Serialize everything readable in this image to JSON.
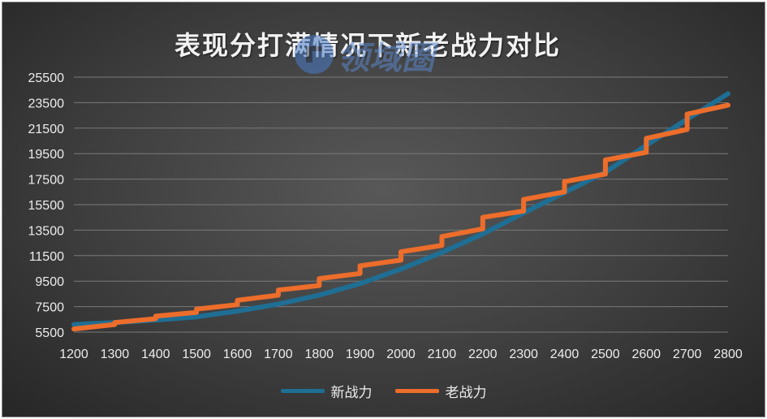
{
  "chart_data": {
    "type": "line",
    "title": "表现分打满情况下新老战力对比",
    "watermark": "领域圈",
    "xlabel": "",
    "ylabel": "",
    "x_ticks": [
      "1200",
      "1300",
      "1400",
      "1500",
      "1600",
      "1700",
      "1800",
      "1900",
      "2000",
      "2100",
      "2200",
      "2300",
      "2400",
      "2500",
      "2600",
      "2700",
      "2800"
    ],
    "y_ticks": [
      "25500",
      "23500",
      "21500",
      "19500",
      "17500",
      "15500",
      "13500",
      "11500",
      "9500",
      "7500",
      "5500"
    ],
    "xlim": [
      1200,
      2800
    ],
    "ylim": [
      5000,
      26000
    ],
    "grid": true,
    "legend_position": "bottom",
    "colors": {
      "new": "#1f6e94",
      "old": "#ed6d2b"
    },
    "series": [
      {
        "name": "新战力",
        "x": [
          1200,
          1300,
          1400,
          1500,
          1600,
          1700,
          1800,
          1900,
          2000,
          2100,
          2200,
          2300,
          2400,
          2500,
          2600,
          2700,
          2800
        ],
        "values": [
          6100,
          6250,
          6450,
          6700,
          7150,
          7700,
          8400,
          9300,
          10450,
          11750,
          13200,
          14850,
          16450,
          18050,
          20150,
          22200,
          24200
        ]
      },
      {
        "name": "老战力",
        "steps": [
          {
            "x0": 1200,
            "x1": 1300,
            "y0": 5750,
            "y1": 6100
          },
          {
            "x0": 1300,
            "x1": 1400,
            "y0": 6250,
            "y1": 6550
          },
          {
            "x0": 1400,
            "x1": 1500,
            "y0": 6750,
            "y1": 7050
          },
          {
            "x0": 1500,
            "x1": 1600,
            "y0": 7300,
            "y1": 7650
          },
          {
            "x0": 1600,
            "x1": 1700,
            "y0": 8000,
            "y1": 8400
          },
          {
            "x0": 1700,
            "x1": 1800,
            "y0": 8800,
            "y1": 9150
          },
          {
            "x0": 1800,
            "x1": 1900,
            "y0": 9700,
            "y1": 10100
          },
          {
            "x0": 1900,
            "x1": 2000,
            "y0": 10700,
            "y1": 11150
          },
          {
            "x0": 2000,
            "x1": 2100,
            "y0": 11800,
            "y1": 12300
          },
          {
            "x0": 2100,
            "x1": 2200,
            "y0": 13000,
            "y1": 13600
          },
          {
            "x0": 2200,
            "x1": 2300,
            "y0": 14500,
            "y1": 15000
          },
          {
            "x0": 2300,
            "x1": 2400,
            "y0": 15900,
            "y1": 16500
          },
          {
            "x0": 2400,
            "x1": 2500,
            "y0": 17300,
            "y1": 17900
          },
          {
            "x0": 2500,
            "x1": 2600,
            "y0": 19000,
            "y1": 19600
          },
          {
            "x0": 2600,
            "x1": 2700,
            "y0": 20700,
            "y1": 21400
          },
          {
            "x0": 2700,
            "x1": 2800,
            "y0": 22600,
            "y1": 23300
          }
        ]
      }
    ]
  }
}
